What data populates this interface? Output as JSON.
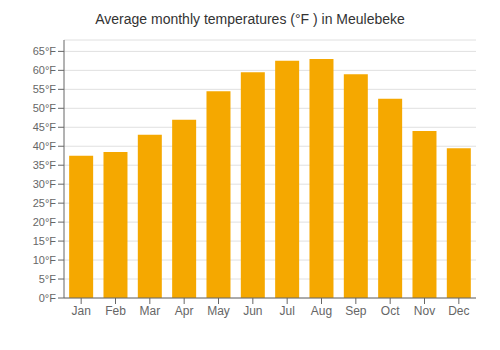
{
  "chart_data": {
    "type": "bar",
    "title": "Average monthly temperatures (°F ) in Meulebeke",
    "categories": [
      "Jan",
      "Feb",
      "Mar",
      "Apr",
      "May",
      "Jun",
      "Jul",
      "Aug",
      "Sep",
      "Oct",
      "Nov",
      "Dec"
    ],
    "values": [
      37.5,
      38.5,
      43.0,
      47.0,
      54.5,
      59.5,
      62.5,
      63.0,
      59.0,
      52.5,
      44.0,
      39.5
    ],
    "color": "#F5A800",
    "ylim": [
      0,
      68
    ],
    "yticks": [
      {
        "value": 0,
        "label": "0°F"
      },
      {
        "value": 5,
        "label": "5°F"
      },
      {
        "value": 10,
        "label": "10°F"
      },
      {
        "value": 15,
        "label": "15°F"
      },
      {
        "value": 20,
        "label": "20°F"
      },
      {
        "value": 25,
        "label": "25°F"
      },
      {
        "value": 30,
        "label": "30°F"
      },
      {
        "value": 35,
        "label": "35°F"
      },
      {
        "value": 40,
        "label": "40°F"
      },
      {
        "value": 45,
        "label": "45°F"
      },
      {
        "value": 50,
        "label": "50°F"
      },
      {
        "value": 55,
        "label": "55°F"
      },
      {
        "value": 60,
        "label": "60°F"
      },
      {
        "value": 65,
        "label": "65°F"
      }
    ],
    "grid": true
  }
}
